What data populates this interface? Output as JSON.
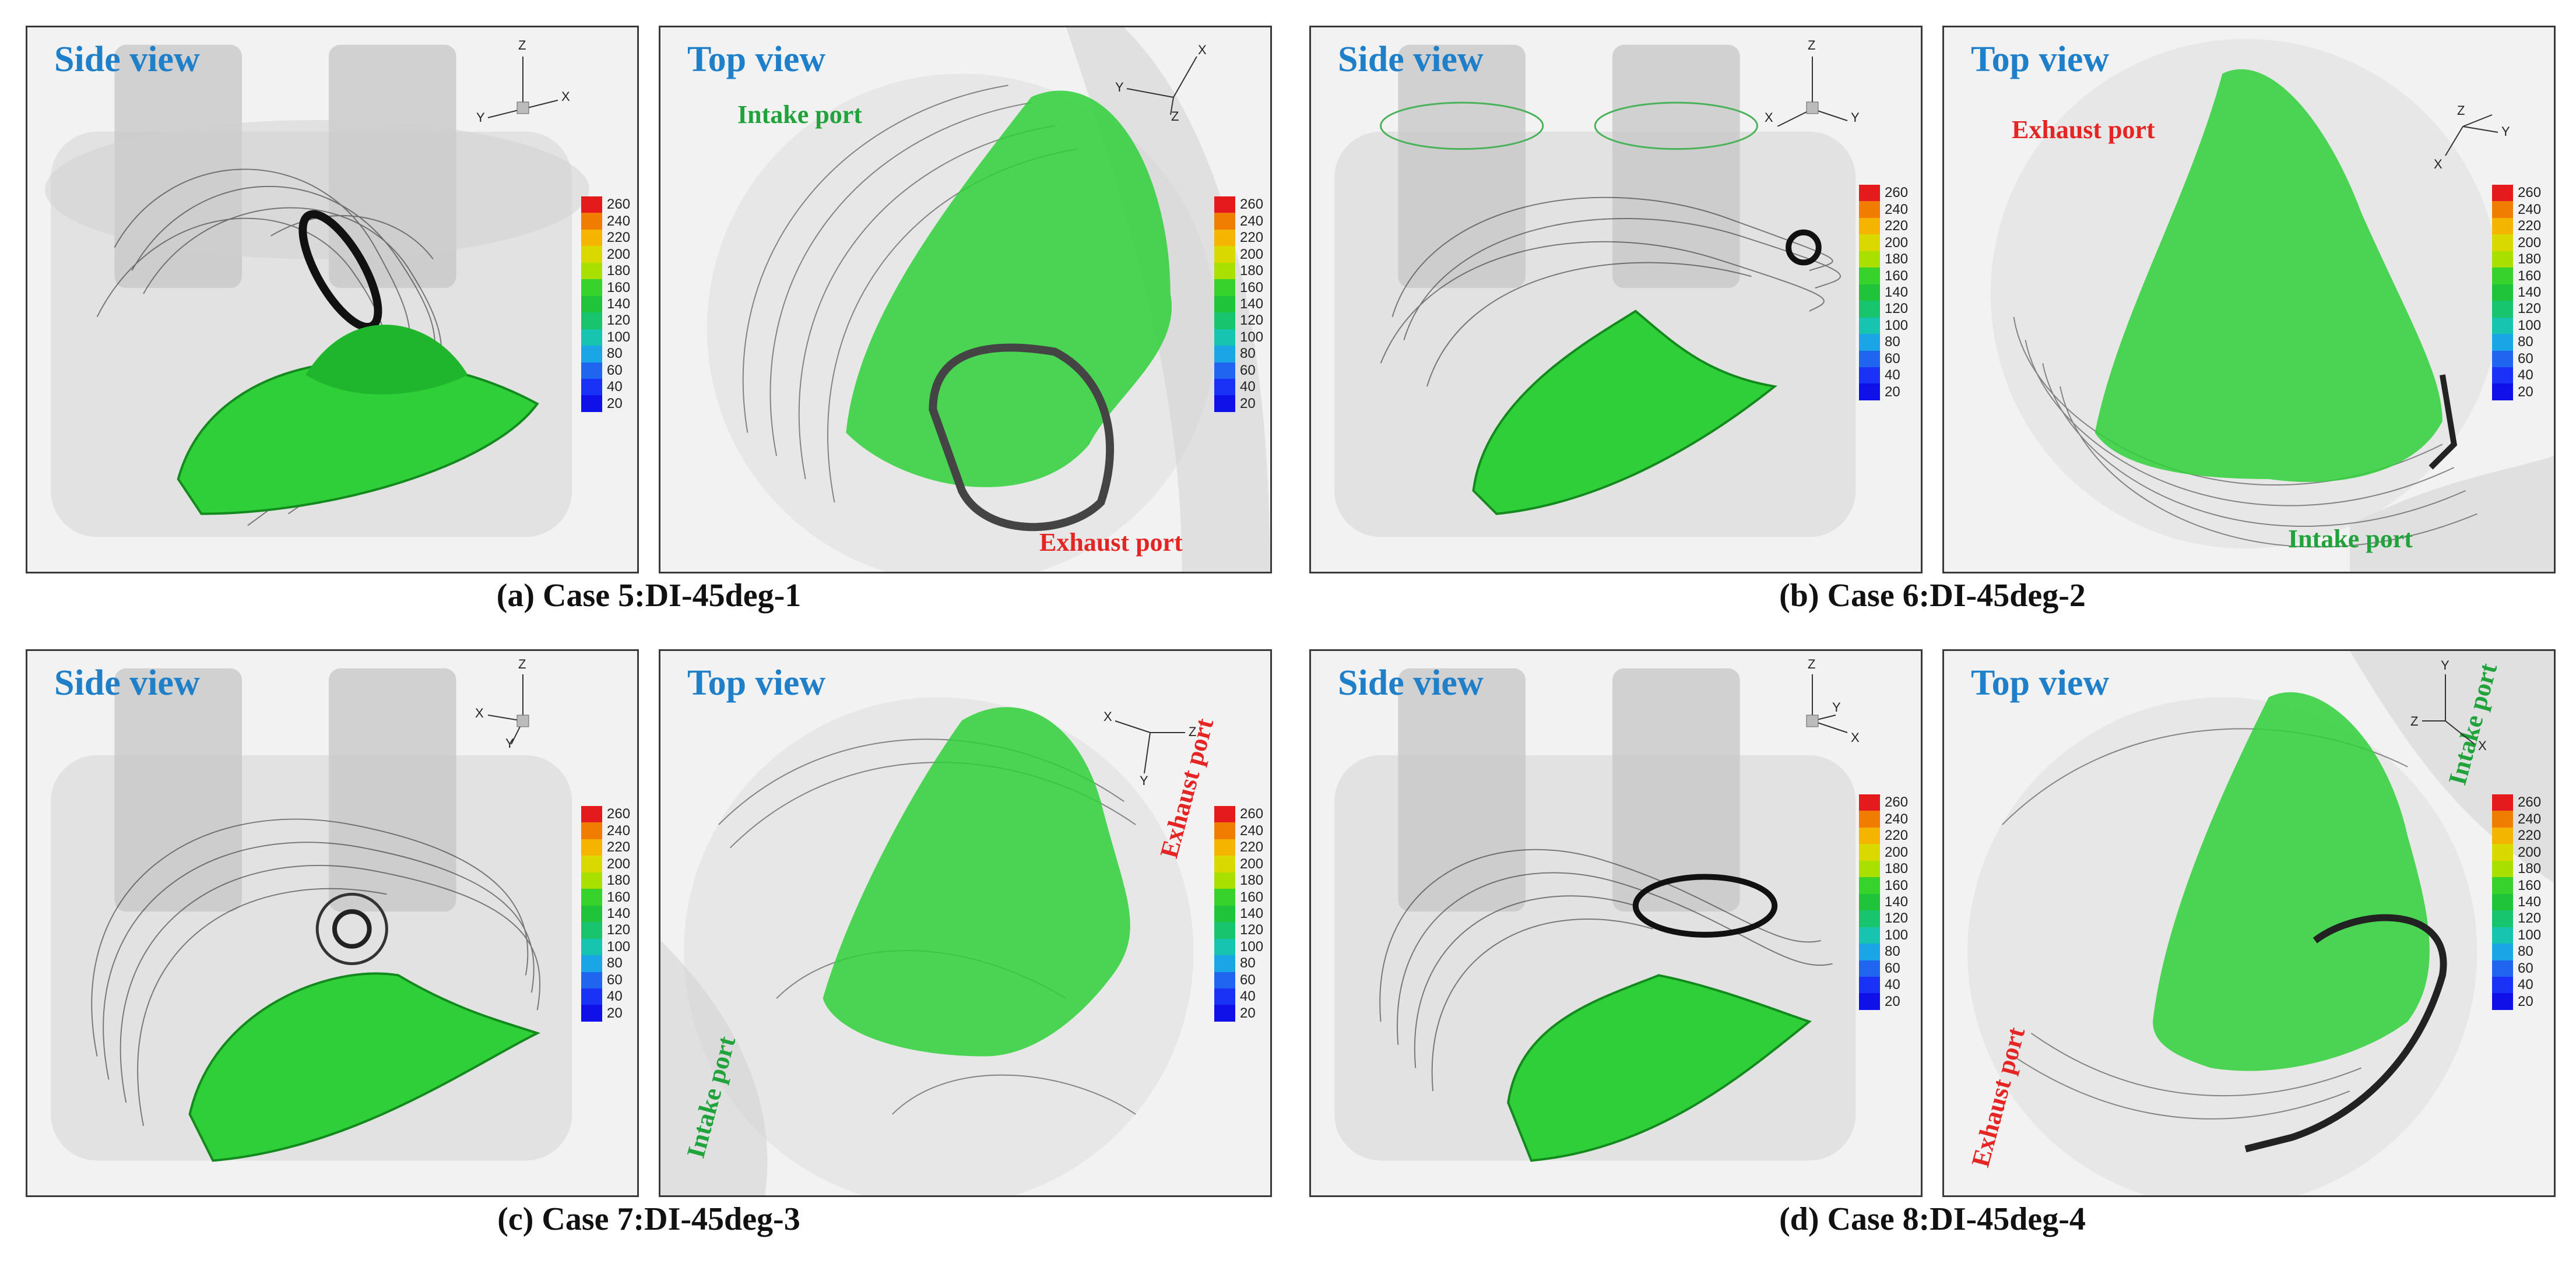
{
  "captions": {
    "a": "(a) Case 5:DI-45deg-1",
    "b": "(b) Case 6:DI-45deg-2",
    "c": "(c) Case 7:DI-45deg-3",
    "d": "(d) Case 8:DI-45deg-4"
  },
  "view_titles": {
    "side": "Side view",
    "top": "Top view"
  },
  "legend": {
    "ticks": [
      "260",
      "240",
      "220",
      "200",
      "180",
      "160",
      "140",
      "120",
      "100",
      "80",
      "60",
      "40",
      "20"
    ],
    "colors": [
      "#e41a1c",
      "#f07d00",
      "#f5b400",
      "#d9d900",
      "#a9e000",
      "#37d22b",
      "#1fc43a",
      "#19c46e",
      "#17c4b0",
      "#1aa6e6",
      "#2065f0",
      "#1a32f5",
      "#1010e8"
    ]
  },
  "port_labels": {
    "a_top_intake": "Intake port",
    "a_top_exhaust": "Exhaust port",
    "b_top_exhaust": "Exhaust port",
    "b_top_intake": "Intake port",
    "c_top_intake": "Intake port",
    "c_top_exhaust": "Exhaust port",
    "d_top_intake": "Intake port",
    "d_top_exhaust": "Exhaust port"
  },
  "axes": {
    "a_side": [
      "Z",
      "Y",
      "X"
    ],
    "a_top": [
      "X",
      "Y",
      "Z"
    ],
    "b_side": [
      "Z",
      "X",
      "Y"
    ],
    "b_top": [
      "Z",
      "X",
      "Y"
    ],
    "c_side": [
      "Z",
      "X",
      "Y"
    ],
    "c_top": [
      "X",
      "Z",
      "Y"
    ],
    "d_side": [
      "Z",
      "Y",
      "X"
    ],
    "d_top": [
      "Y",
      "Z",
      "X"
    ]
  },
  "colors": {
    "title_blue": "#1f7fc9",
    "port_green": "#1fa33a",
    "port_red": "#e52424",
    "iso_green": "#2fcf3a"
  }
}
